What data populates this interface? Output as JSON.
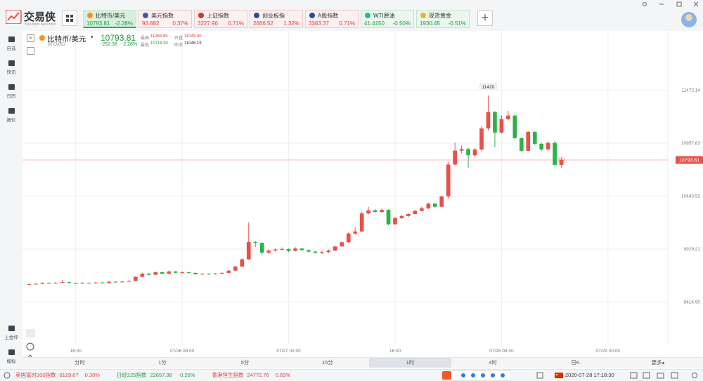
{
  "app": {
    "logo": "交易侠",
    "logo_sub": "TRADER MASTER"
  },
  "tabs": [
    {
      "name": "比特币/美元",
      "price": "10793.81",
      "change": "-2.28%",
      "trend": "down",
      "selected": true,
      "icon": "#f7931a"
    },
    {
      "name": "美元指数",
      "price": "93.882",
      "change": "0.37%",
      "trend": "up",
      "selected": false,
      "icon": "#3c5aa8"
    },
    {
      "name": "上证指数",
      "price": "3227.96",
      "change": "0.71%",
      "trend": "up",
      "selected": false,
      "icon": "#d8322b"
    },
    {
      "name": "创业板指",
      "price": "2666.52",
      "change": "1.32%",
      "trend": "up",
      "selected": false,
      "icon": "#2a4c9b"
    },
    {
      "name": "A股指数",
      "price": "3383.37",
      "change": "0.71%",
      "trend": "up",
      "selected": false,
      "icon": "#2a4c9b"
    },
    {
      "name": "WTI原油",
      "price": "41.4150",
      "change": "-0.50%",
      "trend": "down",
      "selected": false,
      "icon": "#2bb3a4"
    },
    {
      "name": "现货黄金",
      "price": "1930.45",
      "change": "-0.51%",
      "trend": "down",
      "selected": false,
      "icon": "#e5b53a"
    }
  ],
  "sidebar": {
    "top": [
      "自选",
      "快讯",
      "日历",
      "报价"
    ],
    "bottom": [
      "上金坪",
      "模拟"
    ]
  },
  "quote": {
    "name": "比特币/美元",
    "code": "BTCUSD",
    "price": "10793.81",
    "change": "-252.38",
    "change_pct": "-2.28%",
    "stats": [
      {
        "label": "最高",
        "value": "11263.85",
        "trend": "up"
      },
      {
        "label": "开盘",
        "value": "11049.40",
        "trend": "up"
      },
      {
        "label": "最低",
        "value": "10719.92",
        "trend": "down"
      },
      {
        "label": "昨收",
        "value": "11046.19",
        "trend": "flat"
      }
    ]
  },
  "chart_data": {
    "type": "candlestick",
    "up_color": "#e8514a",
    "down_color": "#2bb34a",
    "grid": true,
    "open": [
      9585,
      9588,
      9592,
      9600,
      9598,
      9603,
      9608,
      9600,
      9596,
      9602,
      9598,
      9605,
      9600,
      9612,
      9608,
      9614,
      9620,
      9660,
      9690,
      9680,
      9705,
      9690,
      9712,
      9700,
      9704,
      9698,
      9684,
      9690,
      9686,
      9692,
      9698,
      9720,
      9760,
      9830,
      9997,
      9990,
      9895,
      9915,
      9925,
      9930,
      9912,
      9935,
      9920,
      9905,
      9895,
      9900,
      9915,
      9955,
      9995,
      10080,
      10100,
      10275,
      10305,
      10290,
      10310,
      10170,
      10230,
      10250,
      10270,
      10300,
      10325,
      10370,
      10340,
      10440,
      10750,
      10885,
      10900,
      10840,
      10895,
      11100,
      11258,
      11060,
      11190,
      11225,
      11006,
      10883,
      11067,
      10951,
      10896,
      10960,
      10747
    ],
    "high": [
      9595,
      9598,
      9606,
      9606,
      9610,
      9630,
      9612,
      9604,
      9608,
      9606,
      9612,
      9610,
      9618,
      9616,
      9622,
      9628,
      9668,
      9700,
      9698,
      9712,
      9710,
      9722,
      9716,
      9710,
      9708,
      9702,
      9696,
      9694,
      9698,
      9704,
      9726,
      9768,
      9840,
      10188,
      10010,
      9995,
      9925,
      9940,
      9945,
      9935,
      9948,
      9940,
      9925,
      9912,
      9915,
      9925,
      9962,
      10005,
      10090,
      10140,
      10290,
      10340,
      10320,
      10325,
      10315,
      10240,
      10262,
      10280,
      10312,
      10340,
      10380,
      10376,
      10450,
      10775,
      10960,
      10935,
      10910,
      10910,
      11120,
      11420,
      11270,
      11230,
      11270,
      11235,
      11012,
      11075,
      11072,
      10960,
      10975,
      10980,
      10810
    ],
    "low": [
      9580,
      9584,
      9588,
      9592,
      9594,
      9600,
      9596,
      9590,
      9592,
      9594,
      9594,
      9596,
      9597,
      9604,
      9604,
      9610,
      9616,
      9655,
      9674,
      9676,
      9684,
      9686,
      9694,
      9690,
      9692,
      9680,
      9678,
      9680,
      9682,
      9688,
      9694,
      9716,
      9755,
      9825,
      9950,
      9870,
      9880,
      9905,
      9915,
      9900,
      9905,
      9910,
      9895,
      9885,
      9880,
      9892,
      9910,
      9950,
      9990,
      10070,
      10095,
      10265,
      10280,
      10280,
      10160,
      10165,
      10222,
      10240,
      10262,
      10295,
      10318,
      10330,
      10335,
      10420,
      10740,
      10860,
      10720,
      10820,
      10880,
      11080,
      10920,
      11050,
      11180,
      10990,
      10870,
      10878,
      10940,
      10880,
      10885,
      10730,
      10720
    ],
    "close": [
      9588,
      9592,
      9600,
      9598,
      9603,
      9608,
      9600,
      9596,
      9602,
      9598,
      9605,
      9600,
      9612,
      9608,
      9614,
      9620,
      9660,
      9690,
      9680,
      9705,
      9690,
      9712,
      9700,
      9704,
      9698,
      9684,
      9690,
      9686,
      9692,
      9698,
      9720,
      9760,
      9830,
      9997,
      9990,
      9895,
      9915,
      9925,
      9930,
      9912,
      9935,
      9920,
      9905,
      9895,
      9900,
      9915,
      9955,
      9995,
      10080,
      10100,
      10275,
      10305,
      10290,
      10310,
      10170,
      10230,
      10250,
      10270,
      10300,
      10325,
      10370,
      10340,
      10440,
      10750,
      10885,
      10900,
      10840,
      10895,
      11100,
      11258,
      11060,
      11190,
      11225,
      11006,
      10883,
      11067,
      10951,
      10896,
      10960,
      10747,
      10794
    ],
    "ylim": [
      9010,
      12040
    ],
    "yticks": [
      {
        "value": 9414.9,
        "label": "9414.90"
      },
      9929.21,
      10443.52,
      10957.83,
      11472.14
    ],
    "xlim": [
      -1,
      96
    ],
    "xticks": [
      {
        "value": 7,
        "label": "16:00"
      },
      {
        "value": 23,
        "label": "07/26 08:00"
      },
      {
        "value": 39,
        "label": "07/27 00:00"
      },
      {
        "value": 55,
        "label": "16:00"
      },
      {
        "value": 71,
        "label": "07/28 08:00"
      },
      {
        "value": 87,
        "label": "07/29 00:00"
      }
    ],
    "last_price": 10793.81,
    "annotation": {
      "index": 69,
      "label": "11420"
    }
  },
  "periods": {
    "items": [
      "分时",
      "1分",
      "5分",
      "15分",
      "1时",
      "4时",
      "日K",
      "更多▴"
    ],
    "selected": 4
  },
  "footer": {
    "tickers": [
      {
        "name": "英国富时100指数",
        "price": "6129.67",
        "change": "0.30%",
        "trend": "up"
      },
      {
        "name": "日经225指数",
        "price": "22657.38",
        "change": "-0.26%",
        "trend": "down"
      },
      {
        "name": "香港恒生指数",
        "price": "24772.76",
        "change": "0.69%",
        "trend": "up"
      }
    ],
    "time": "2020-07-28 17:18:30"
  }
}
